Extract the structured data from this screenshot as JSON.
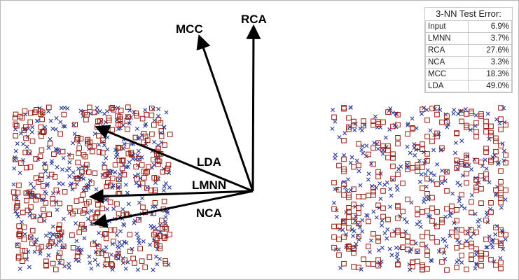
{
  "colors": {
    "class_a": "#9b1c10",
    "class_b": "#2a3a9a",
    "arrow": "#000000"
  },
  "arrows": [
    {
      "label": "MCC"
    },
    {
      "label": "RCA"
    },
    {
      "label": "LDA"
    },
    {
      "label": "LMNN"
    },
    {
      "label": "NCA"
    }
  ],
  "legend": {
    "title": "3-NN Test Error:",
    "rows": [
      {
        "method": "Input",
        "error": "6.9%"
      },
      {
        "method": "LMNN",
        "error": "3.7%"
      },
      {
        "method": "RCA",
        "error": "27.6%"
      },
      {
        "method": "NCA",
        "error": "3.3%"
      },
      {
        "method": "MCC",
        "error": "18.3%"
      },
      {
        "method": "LDA",
        "error": "49.0%"
      }
    ]
  },
  "chart_data": {
    "type": "scatter",
    "title": "",
    "panels": [
      {
        "series": [
          {
            "marker": "square",
            "color": "#9b1c10"
          },
          {
            "marker": "x",
            "color": "#2a3a9a"
          }
        ]
      },
      {
        "series": [
          {
            "marker": "square",
            "color": "#9b1c10"
          },
          {
            "marker": "x",
            "color": "#2a3a9a"
          }
        ]
      }
    ],
    "table": [
      [
        "Input",
        "6.9%"
      ],
      [
        "LMNN",
        "3.7%"
      ],
      [
        "RCA",
        "27.6%"
      ],
      [
        "NCA",
        "3.3%"
      ],
      [
        "MCC",
        "18.3%"
      ],
      [
        "LDA",
        "49.0%"
      ]
    ]
  }
}
